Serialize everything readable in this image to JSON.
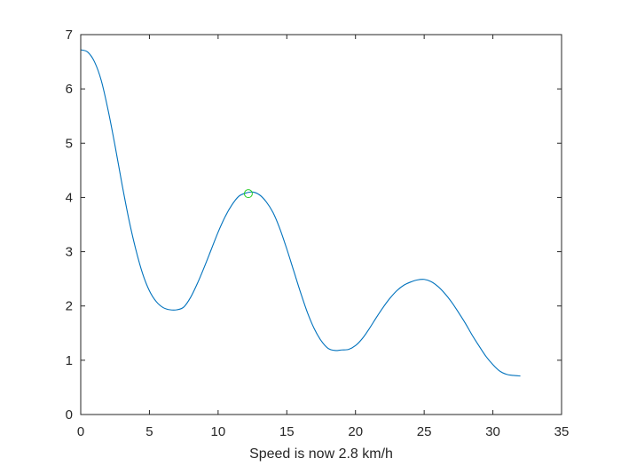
{
  "chart_data": {
    "type": "line",
    "title": "",
    "xlabel": "Speed is now 2.8 km/h",
    "ylabel": "",
    "xlim": [
      0,
      35
    ],
    "ylim": [
      0,
      7
    ],
    "xticks": [
      0,
      5,
      10,
      15,
      20,
      25,
      30,
      35
    ],
    "yticks": [
      0,
      1,
      2,
      3,
      4,
      5,
      6,
      7
    ],
    "xtick_labels": [
      "0",
      "5",
      "10",
      "15",
      "20",
      "25",
      "30",
      "35"
    ],
    "ytick_labels": [
      "0",
      "1",
      "2",
      "3",
      "4",
      "5",
      "6",
      "7"
    ],
    "grid": false,
    "box": true,
    "series": [
      {
        "color": "#0072BD",
        "x": [
          0,
          0.5,
          1,
          1.5,
          2,
          2.5,
          3,
          3.5,
          4,
          4.5,
          5,
          5.5,
          6,
          6.5,
          7,
          7.5,
          8,
          8.5,
          9,
          9.5,
          10,
          10.5,
          11,
          11.5,
          12,
          12.5,
          13,
          13.5,
          14,
          14.5,
          15,
          15.5,
          16,
          16.5,
          17,
          17.5,
          18,
          18.5,
          19,
          19.5,
          20,
          20.5,
          21,
          21.5,
          22,
          22.5,
          23,
          23.5,
          24,
          24.5,
          25,
          25.5,
          26,
          26.5,
          27,
          27.5,
          28,
          28.5,
          29,
          29.5,
          30,
          30.5,
          31,
          31.5,
          32
        ],
        "y": [
          6.72,
          6.68,
          6.5,
          6.15,
          5.6,
          4.95,
          4.25,
          3.6,
          3.05,
          2.6,
          2.28,
          2.08,
          1.97,
          1.93,
          1.93,
          1.98,
          2.16,
          2.42,
          2.72,
          3.04,
          3.36,
          3.64,
          3.86,
          4.02,
          4.08,
          4.1,
          4.05,
          3.92,
          3.72,
          3.42,
          3.05,
          2.65,
          2.25,
          1.88,
          1.58,
          1.36,
          1.22,
          1.18,
          1.19,
          1.2,
          1.27,
          1.4,
          1.58,
          1.78,
          1.97,
          2.14,
          2.28,
          2.38,
          2.44,
          2.48,
          2.49,
          2.45,
          2.36,
          2.23,
          2.07,
          1.88,
          1.68,
          1.46,
          1.26,
          1.07,
          0.92,
          0.8,
          0.74,
          0.72,
          0.71
        ]
      }
    ],
    "marker": {
      "shape": "circle",
      "color": "#22cc22",
      "x": 12.2,
      "y": 4.07
    }
  }
}
